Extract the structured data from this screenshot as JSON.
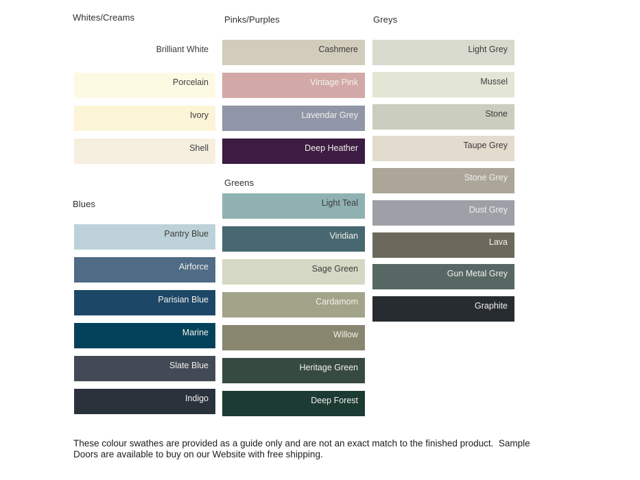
{
  "page": {
    "background": "#FFFFFF"
  },
  "label_colors": {
    "dark": "#3C3C3C",
    "light": "#F3F1ED"
  },
  "sections": [
    {
      "id": "whites-creams",
      "header": "Whites/Creams",
      "swatches": [
        {
          "label": "Brilliant White",
          "color": "#FFFFFF",
          "text": "dark"
        },
        {
          "label": "Porcelain",
          "color": "#FDFAE4",
          "text": "dark"
        },
        {
          "label": "Ivory",
          "color": "#FBF4D6",
          "text": "dark"
        },
        {
          "label": "Shell",
          "color": "#F6EEDF",
          "text": "dark"
        }
      ]
    },
    {
      "id": "blues",
      "header": "Blues",
      "swatches": [
        {
          "label": "Pantry Blue",
          "color": "#BDD2D8",
          "text": "dark"
        },
        {
          "label": "Airforce",
          "color": "#4F6B85",
          "text": "light"
        },
        {
          "label": "Parisian Blue",
          "color": "#1D4767",
          "text": "light"
        },
        {
          "label": "Marine",
          "color": "#03425A",
          "text": "light"
        },
        {
          "label": "Slate Blue",
          "color": "#424A55",
          "text": "light"
        },
        {
          "label": "Indigo",
          "color": "#2A323C",
          "text": "light"
        }
      ]
    },
    {
      "id": "pinks-purples",
      "header": "Pinks/Purples",
      "swatches": [
        {
          "label": "Cashmere",
          "color": "#D1CCBC",
          "text": "dark"
        },
        {
          "label": "Vintage Pink",
          "color": "#D2A9A7",
          "text": "light"
        },
        {
          "label": "Lavendar Grey",
          "color": "#9096A7",
          "text": "light"
        },
        {
          "label": "Deep Heather",
          "color": "#3C1C42",
          "text": "light"
        }
      ]
    },
    {
      "id": "greens",
      "header": "Greens",
      "swatches": [
        {
          "label": "Light Teal",
          "color": "#8FB1B2",
          "text": "dark"
        },
        {
          "label": "Viridian",
          "color": "#476870",
          "text": "light"
        },
        {
          "label": "Sage Green",
          "color": "#D5D8C4",
          "text": "dark"
        },
        {
          "label": "Cardamom",
          "color": "#A2A489",
          "text": "light"
        },
        {
          "label": "Willow",
          "color": "#88866E",
          "text": "light"
        },
        {
          "label": "Heritage Green",
          "color": "#374A3F",
          "text": "light"
        },
        {
          "label": "Deep Forest",
          "color": "#1C3B33",
          "text": "light"
        }
      ]
    },
    {
      "id": "greys",
      "header": "Greys",
      "swatches": [
        {
          "label": "Light Grey",
          "color": "#D8DACE",
          "text": "dark"
        },
        {
          "label": "Mussel",
          "color": "#E3E5D5",
          "text": "dark"
        },
        {
          "label": "Stone",
          "color": "#CBCDBF",
          "text": "dark"
        },
        {
          "label": "Taupe Grey",
          "color": "#E2DBCE",
          "text": "dark"
        },
        {
          "label": "Stone Grey",
          "color": "#ACA699",
          "text": "light"
        },
        {
          "label": "Dust Grey",
          "color": "#9EA0A7",
          "text": "light"
        },
        {
          "label": "Lava",
          "color": "#6C695C",
          "text": "light"
        },
        {
          "label": "Gun Metal Grey",
          "color": "#576763",
          "text": "light"
        },
        {
          "label": "Graphite",
          "color": "#272C31",
          "text": "light"
        }
      ]
    }
  ],
  "footer": {
    "line1": "These colour swathes are provided as a guide only and are not an exact match to the finished product.  Sample",
    "line2": "Doors are available to buy on our Website with free shipping."
  }
}
